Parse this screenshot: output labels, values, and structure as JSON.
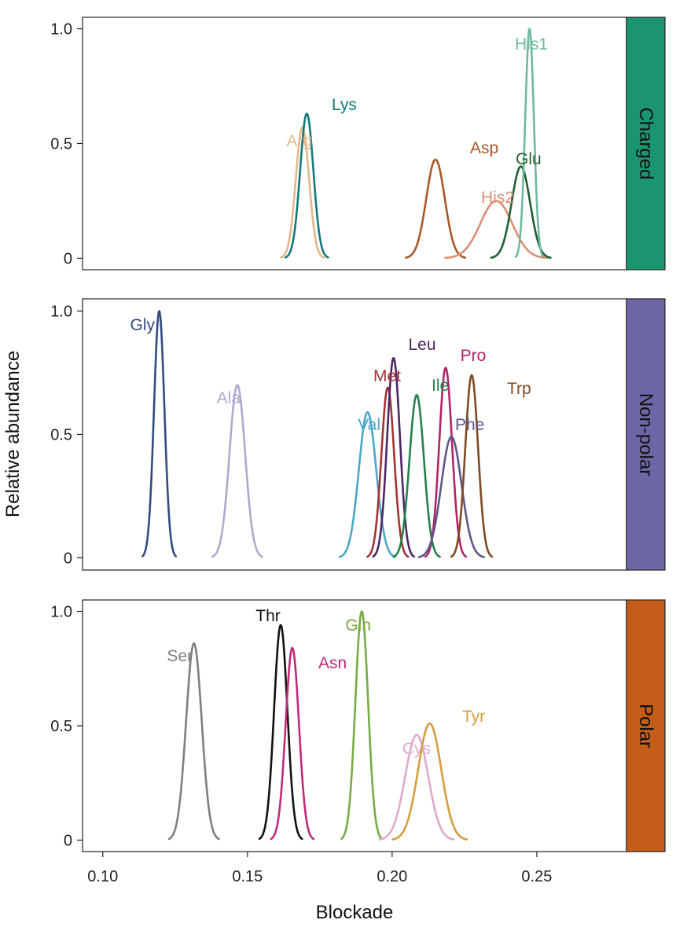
{
  "chart_data": {
    "type": "line",
    "title": "",
    "xlabel": "Blockade",
    "ylabel": "Relative abundance",
    "xlim": [
      0.093,
      0.281
    ],
    "ylim": [
      -0.05,
      1.05
    ],
    "x_ticks": [
      0.1,
      0.15,
      0.2,
      0.25
    ],
    "x_tick_labels": [
      "0.10",
      "0.15",
      "0.20",
      "0.25"
    ],
    "y_ticks": [
      0,
      0.5,
      1.0
    ],
    "y_tick_labels": [
      "0",
      "0.5",
      "1.0"
    ],
    "panels": [
      {
        "group": "Charged",
        "strip_color": "#1b9470",
        "series": [
          {
            "name": "Arg",
            "center": 0.169,
            "sigma": 0.0023,
            "peak": 0.57,
            "color": "#e2b98c"
          },
          {
            "name": "Lys",
            "center": 0.1705,
            "sigma": 0.0023,
            "peak": 0.63,
            "color": "#137a78"
          },
          {
            "name": "Asp",
            "center": 0.215,
            "sigma": 0.0032,
            "peak": 0.43,
            "color": "#a9582a"
          },
          {
            "name": "His2",
            "center": 0.236,
            "sigma": 0.0055,
            "peak": 0.25,
            "color": "#e08c72"
          },
          {
            "name": "Glu",
            "center": 0.2445,
            "sigma": 0.0032,
            "peak": 0.4,
            "color": "#215f33"
          },
          {
            "name": "His1",
            "center": 0.2475,
            "sigma": 0.0015,
            "peak": 1.0,
            "color": "#6fba9a"
          }
        ]
      },
      {
        "group": "Non-polar",
        "strip_color": "#6c66a6",
        "series": [
          {
            "name": "Gly",
            "center": 0.1195,
            "sigma": 0.0018,
            "peak": 1.0,
            "color": "#344c7d"
          },
          {
            "name": "Ala",
            "center": 0.1465,
            "sigma": 0.0027,
            "peak": 0.7,
            "color": "#b1a8cd"
          },
          {
            "name": "Val",
            "center": 0.1915,
            "sigma": 0.003,
            "peak": 0.59,
            "color": "#4aa8c6"
          },
          {
            "name": "Met",
            "center": 0.1985,
            "sigma": 0.0022,
            "peak": 0.69,
            "color": "#a33434"
          },
          {
            "name": "Leu",
            "center": 0.2005,
            "sigma": 0.0022,
            "peak": 0.81,
            "color": "#4d2766"
          },
          {
            "name": "Ile",
            "center": 0.2085,
            "sigma": 0.0025,
            "peak": 0.66,
            "color": "#24804d"
          },
          {
            "name": "Pro",
            "center": 0.2185,
            "sigma": 0.0022,
            "peak": 0.77,
            "color": "#b12467"
          },
          {
            "name": "Phe",
            "center": 0.2205,
            "sigma": 0.0035,
            "peak": 0.49,
            "color": "#5f5688"
          },
          {
            "name": "Trp",
            "center": 0.2275,
            "sigma": 0.0022,
            "peak": 0.74,
            "color": "#7d4a22"
          }
        ]
      },
      {
        "group": "Polar",
        "strip_color": "#c45c1a",
        "series": [
          {
            "name": "Ser",
            "center": 0.1315,
            "sigma": 0.0027,
            "peak": 0.86,
            "color": "#7f7f7f"
          },
          {
            "name": "Thr",
            "center": 0.1615,
            "sigma": 0.0023,
            "peak": 0.94,
            "color": "#111111"
          },
          {
            "name": "Asn",
            "center": 0.1655,
            "sigma": 0.0023,
            "peak": 0.84,
            "color": "#c02a79"
          },
          {
            "name": "Gln",
            "center": 0.1895,
            "sigma": 0.0022,
            "peak": 1.0,
            "color": "#78aa45"
          },
          {
            "name": "Cys",
            "center": 0.2085,
            "sigma": 0.004,
            "peak": 0.46,
            "color": "#dfaac9"
          },
          {
            "name": "Tyr",
            "center": 0.213,
            "sigma": 0.004,
            "peak": 0.51,
            "color": "#d49d3c"
          }
        ]
      }
    ]
  }
}
